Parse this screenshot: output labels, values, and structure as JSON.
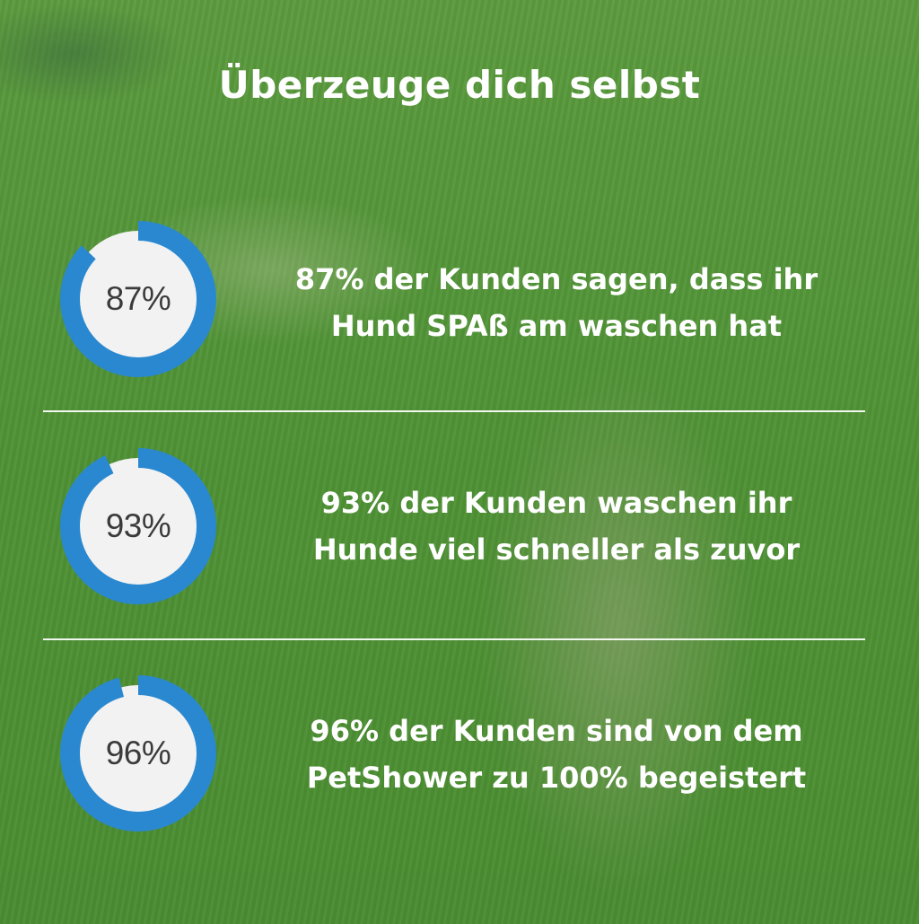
{
  "title": "Überzeuge dich selbst",
  "colors": {
    "accent": "#2a88d0",
    "ring_inner": "#f2f2f2",
    "text": "#ffffff"
  },
  "stats": [
    {
      "value": 87,
      "label": "87%",
      "line1": "87% der Kunden sagen, dass ihr",
      "line2": "Hund SPAß am waschen hat"
    },
    {
      "value": 93,
      "label": "93%",
      "line1": "93% der Kunden waschen ihr",
      "line2": "Hunde viel schneller als zuvor"
    },
    {
      "value": 96,
      "label": "96%",
      "line1": "96% der Kunden sind von dem",
      "line2": "PetShower zu 100% begeistert"
    }
  ]
}
